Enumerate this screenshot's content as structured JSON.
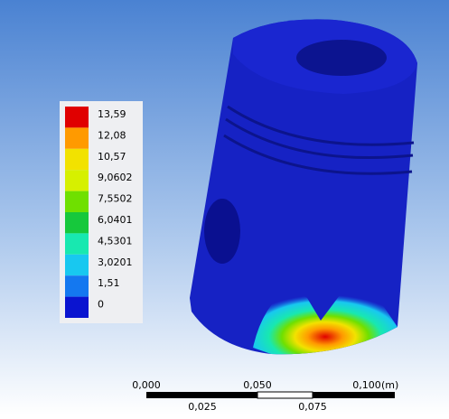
{
  "legend": {
    "labels": [
      "13,59",
      "12,08",
      "10,57",
      "9,0602",
      "7,5502",
      "6,0401",
      "4,5301",
      "3,0201",
      "1,51",
      "0"
    ],
    "colors": [
      "#e00000",
      "#ff9a00",
      "#f2e200",
      "#d6f000",
      "#6fe000",
      "#16c83c",
      "#18e8b0",
      "#18c8f0",
      "#1478f0",
      "#0a14d0"
    ]
  },
  "scale_bar": {
    "top_labels": [
      "0,000",
      "0,050",
      "0,100"
    ],
    "unit": "(m)",
    "bottom_labels": [
      "0,025",
      "0,075"
    ]
  }
}
